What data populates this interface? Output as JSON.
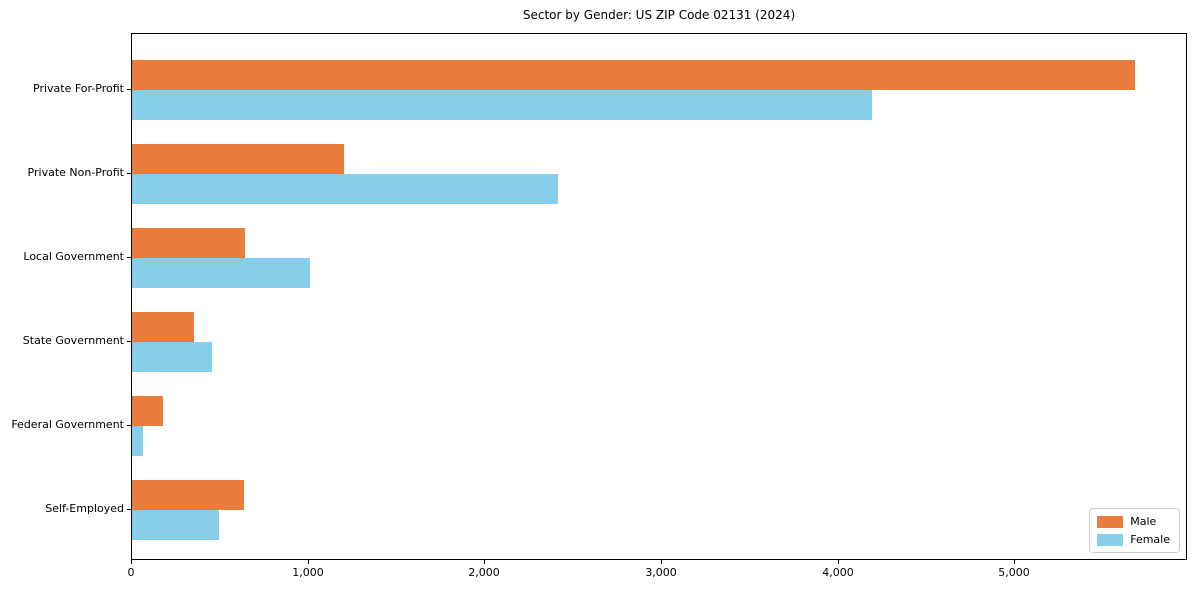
{
  "chart_data": {
    "type": "bar",
    "orientation": "horizontal",
    "title": "Sector by Gender: US ZIP Code 02131 (2024)",
    "categories": [
      "Private For-Profit",
      "Private Non-Profit",
      "Local Government",
      "State Government",
      "Federal Government",
      "Self-Employed"
    ],
    "series": [
      {
        "name": "Male",
        "color": "#e87d3e",
        "values": [
          5680,
          1200,
          640,
          350,
          175,
          635
        ]
      },
      {
        "name": "Female",
        "color": "#87ceeb",
        "values": [
          4190,
          2410,
          1010,
          455,
          65,
          490
        ]
      }
    ],
    "xlabel": "",
    "ylabel": "",
    "xlim": [
      0,
      5966
    ],
    "xticks": [
      0,
      1000,
      2000,
      3000,
      4000,
      5000
    ],
    "xtick_labels": [
      "0",
      "1,000",
      "2,000",
      "3,000",
      "4,000",
      "5,000"
    ],
    "legend_position": "lower right",
    "grid": false,
    "background_color": "#ffffff",
    "axis_color": "#000000"
  }
}
